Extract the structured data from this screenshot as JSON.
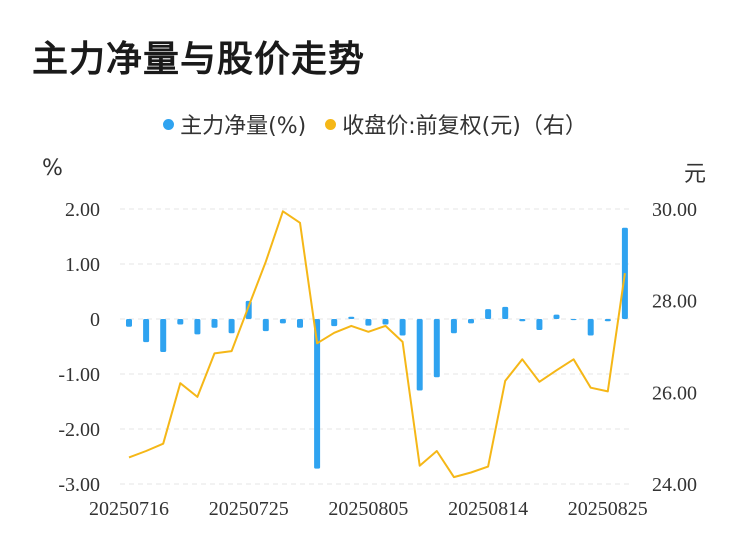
{
  "title": "主力净量与股价走势",
  "units": {
    "left": "%",
    "right": "元"
  },
  "colors": {
    "bar": "#2fa3f0",
    "line": "#f5b717",
    "grid": "#e6e6e6"
  },
  "chart_data": {
    "type": "bar+line",
    "legend": [
      {
        "name": "主力净量(%)",
        "color": "#2fa3f0",
        "kind": "bar"
      },
      {
        "name": "收盘价:前复权(元)（右）",
        "color": "#f5b717",
        "kind": "line"
      }
    ],
    "x": [
      "20250716",
      "20250717",
      "20250718",
      "20250721",
      "20250722",
      "20250723",
      "20250724",
      "20250725",
      "20250728",
      "20250729",
      "20250730",
      "20250731",
      "20250801",
      "20250804",
      "20250805",
      "20250806",
      "20250807",
      "20250808",
      "20250811",
      "20250812",
      "20250813",
      "20250814",
      "20250815",
      "20250818",
      "20250819",
      "20250820",
      "20250821",
      "20250822",
      "20250825",
      "20250826"
    ],
    "x_tick_labels": [
      "20250716",
      "20250725",
      "20250805",
      "20250814",
      "20250825"
    ],
    "series": [
      {
        "name": "主力净量(%)",
        "axis": "left",
        "type": "bar",
        "values": [
          -0.14,
          -0.42,
          -0.6,
          -0.1,
          -0.28,
          -0.16,
          -0.26,
          0.33,
          -0.22,
          -0.08,
          -0.16,
          -2.72,
          -0.13,
          0.04,
          -0.12,
          -0.1,
          -0.3,
          -1.3,
          -1.06,
          -0.26,
          -0.08,
          0.18,
          0.22,
          -0.04,
          -0.2,
          0.08,
          -0.02,
          -0.3,
          -0.04,
          1.66
        ]
      },
      {
        "name": "收盘价:前复权(元)（右）",
        "axis": "right",
        "type": "line",
        "values": [
          24.58,
          24.72,
          24.88,
          26.2,
          25.9,
          26.85,
          26.9,
          27.88,
          28.85,
          29.95,
          29.7,
          27.07,
          27.3,
          27.45,
          27.32,
          27.45,
          27.1,
          24.4,
          24.72,
          24.15,
          24.25,
          24.38,
          26.25,
          26.72,
          26.23,
          26.48,
          26.72,
          26.1,
          26.02,
          28.6
        ]
      }
    ],
    "y_left": {
      "min": -3.0,
      "max": 2.0,
      "ticks": [
        "2.00",
        "1.00",
        "0",
        "-1.00",
        "-2.00",
        "-3.00"
      ],
      "tick_values": [
        2,
        1,
        0,
        -1,
        -2,
        -3
      ]
    },
    "y_right": {
      "min": 24.0,
      "max": 30.0,
      "ticks": [
        "30.00",
        "28.00",
        "26.00",
        "24.00"
      ],
      "tick_values": [
        30,
        28,
        26,
        24
      ]
    },
    "grid": true,
    "legend_position": "top-center"
  }
}
